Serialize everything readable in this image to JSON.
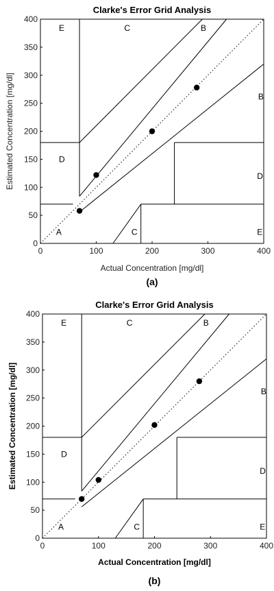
{
  "chart_data": [
    {
      "type": "scatter",
      "title": "Clarke's Error Grid Analysis",
      "xlabel": "Actual Concentration [mg/dl]",
      "ylabel": "Estimated Concentration [mg/dl]",
      "xlim": [
        0,
        400
      ],
      "ylim": [
        0,
        400
      ],
      "xticks": [
        "0",
        "100",
        "200",
        "300",
        "400"
      ],
      "yticks": [
        "0",
        "50",
        "100",
        "150",
        "200",
        "250",
        "300",
        "350",
        "400"
      ],
      "points": [
        {
          "x": 70,
          "y": 58
        },
        {
          "x": 100,
          "y": 122
        },
        {
          "x": 200,
          "y": 200
        },
        {
          "x": 280,
          "y": 278
        }
      ],
      "zone_labels": [
        "A",
        "B",
        "B",
        "C",
        "C",
        "D",
        "D",
        "E",
        "E"
      ],
      "caption": "(a)"
    },
    {
      "type": "scatter",
      "title": "Clarke's Error Grid Analysis",
      "xlabel": "Actual Concentration [mg/dl]",
      "ylabel": "Estimated Concentration [mg/dl]",
      "xlim": [
        0,
        400
      ],
      "ylim": [
        0,
        400
      ],
      "xticks": [
        "0",
        "100",
        "200",
        "300",
        "400"
      ],
      "yticks": [
        "0",
        "50",
        "100",
        "150",
        "200",
        "250",
        "300",
        "350",
        "400"
      ],
      "points": [
        {
          "x": 70,
          "y": 70
        },
        {
          "x": 100,
          "y": 104
        },
        {
          "x": 200,
          "y": 202
        },
        {
          "x": 280,
          "y": 280
        }
      ],
      "zone_labels": [
        "A",
        "B",
        "B",
        "C",
        "C",
        "D",
        "D",
        "E",
        "E"
      ],
      "caption": "(b)"
    }
  ]
}
